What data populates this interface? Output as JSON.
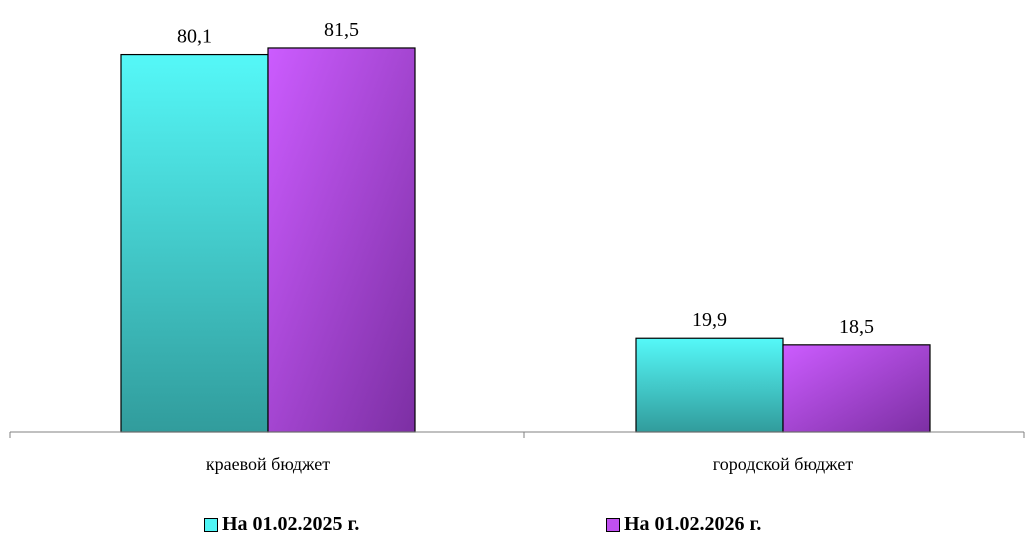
{
  "chart_data": {
    "type": "bar",
    "categories": [
      "краевой бюджет",
      "городской бюджет"
    ],
    "series": [
      {
        "name": "На 01.02.2025 г.",
        "values": [
          80.1,
          19.9
        ],
        "labels": [
          "80,1",
          "19,9"
        ],
        "color": "#4ff5f5"
      },
      {
        "name": "На 01.02.2026 г.",
        "values": [
          81.5,
          18.5
        ],
        "labels": [
          "81,5",
          "18,5"
        ],
        "color": "#c050f0"
      }
    ],
    "title": "",
    "xlabel": "",
    "ylabel": "",
    "ylim": [
      0,
      100
    ],
    "grid": false,
    "legend_position": "bottom"
  }
}
